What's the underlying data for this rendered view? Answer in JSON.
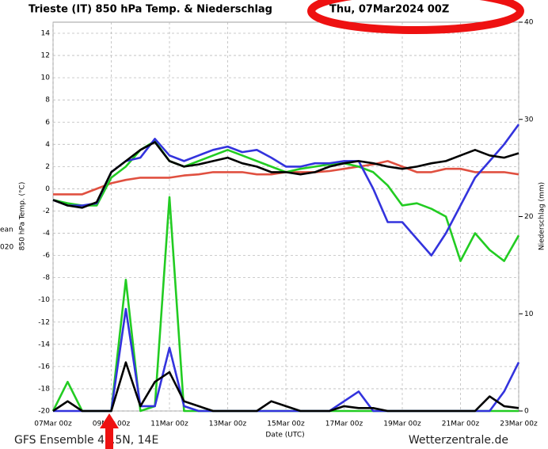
{
  "chart_data": {
    "type": "line",
    "title": "Trieste  (IT)  850 hPa Temp. & Niederschlag",
    "date": "Thu, 07Mar2024 00Z",
    "xlabel": "Date (UTC)",
    "ylabel": "850 hPa Temp. (°C)",
    "y2label": "Niederschlag (mm)",
    "side_labels": [
      "ean",
      "020"
    ],
    "footer_left": "GFS Ensemble 45.5N, 14E",
    "footer_right": "Wetterzentrale.de",
    "x": [
      0,
      0.5,
      1,
      1.5,
      2,
      2.5,
      3,
      3.5,
      4,
      4.5,
      5,
      5.5,
      6,
      6.5,
      7,
      7.5,
      8,
      8.5,
      9,
      9.5,
      10,
      10.5,
      11,
      11.5,
      12,
      12.5,
      13,
      13.5,
      14,
      14.5,
      15,
      15.5,
      16
    ],
    "xlim": [
      0,
      16
    ],
    "xticks": [
      {
        "value": 0,
        "label": "07Mar 00z"
      },
      {
        "value": 2,
        "label": "09Mar 00z"
      },
      {
        "value": 4,
        "label": "11Mar 00z"
      },
      {
        "value": 6,
        "label": "13Mar 00z"
      },
      {
        "value": 8,
        "label": "15Mar 00z"
      },
      {
        "value": 10,
        "label": "17Mar 00z"
      },
      {
        "value": 12,
        "label": "19Mar 00z"
      },
      {
        "value": 14,
        "label": "21Mar 00z"
      },
      {
        "value": 16,
        "label": "23Mar 00z"
      }
    ],
    "ylim": [
      -20,
      15
    ],
    "yticks": [
      -20,
      -18,
      -16,
      -14,
      -12,
      -10,
      -8,
      -6,
      -4,
      -2,
      0,
      2,
      4,
      6,
      8,
      10,
      12,
      14
    ],
    "y2lim": [
      0,
      40
    ],
    "y2ticks": [
      0,
      10,
      20,
      30,
      40
    ],
    "grid": true,
    "series": [
      {
        "color": "#e05040",
        "values": [
          -0.5,
          -0.5,
          -0.5,
          0,
          0.5,
          0.8,
          1,
          1,
          1,
          1.2,
          1.3,
          1.5,
          1.5,
          1.5,
          1.3,
          1.3,
          1.5,
          1.5,
          1.5,
          1.6,
          1.8,
          2,
          2.2,
          2.5,
          2,
          1.5,
          1.5,
          1.8,
          1.8,
          1.5,
          1.5,
          1.5,
          1.3
        ]
      },
      {
        "color": "#22cc22",
        "values": [
          -1,
          -1.3,
          -1.5,
          -1.5,
          1,
          2,
          3.5,
          4.3,
          2.5,
          2,
          2.5,
          3,
          3.5,
          3,
          2.5,
          2,
          1.5,
          1.8,
          2,
          2.2,
          2.3,
          2,
          1.5,
          0.3,
          -1.5,
          -1.3,
          -1.8,
          -2.5,
          -6.5,
          -4,
          -5.5,
          -6.5,
          -4.2
        ]
      },
      {
        "color": "#3333dd",
        "values": [
          -1,
          -1.5,
          -1.5,
          -1.3,
          1.5,
          2.5,
          2.8,
          4.5,
          3,
          2.5,
          3,
          3.5,
          3.8,
          3.3,
          3.5,
          2.8,
          2,
          2,
          2.3,
          2.3,
          2.5,
          2.5,
          0,
          -3,
          -3,
          -4.5,
          -6,
          -4,
          -1.5,
          1,
          2.5,
          4,
          5.8
        ]
      },
      {
        "color": "#000000",
        "values": [
          -1,
          -1.5,
          -1.7,
          -1.2,
          1.5,
          2.5,
          3.5,
          4.2,
          2.5,
          2,
          2.2,
          2.5,
          2.8,
          2.3,
          2,
          1.5,
          1.5,
          1.3,
          1.5,
          2,
          2.3,
          2.5,
          2.3,
          2,
          1.8,
          2,
          2.3,
          2.5,
          3,
          3.5,
          3,
          2.8,
          3.2
        ]
      },
      {
        "color": "#22cc22",
        "axis": "y2",
        "values": [
          0,
          3,
          0,
          0,
          0,
          13.5,
          0,
          0.5,
          22,
          0,
          0,
          0,
          0,
          0,
          0,
          0,
          0,
          0,
          0,
          0,
          0,
          0,
          0,
          0,
          0,
          0,
          0,
          0,
          0,
          0,
          0,
          0,
          0
        ]
      },
      {
        "color": "#3333dd",
        "axis": "y2",
        "values": [
          0,
          0,
          0,
          0,
          0,
          10.5,
          0.5,
          0.5,
          6.5,
          0.5,
          0,
          0,
          0,
          0,
          0,
          0,
          0,
          0,
          0,
          0,
          1,
          2,
          0,
          0,
          0,
          0,
          0,
          0,
          0,
          0,
          0,
          2,
          5
        ]
      },
      {
        "color": "#000000",
        "axis": "y2",
        "values": [
          0,
          1,
          0,
          0,
          0,
          5,
          0.5,
          3,
          4,
          1,
          0.5,
          0,
          0,
          0,
          0,
          1,
          0.5,
          0,
          0,
          0,
          0.5,
          0.3,
          0.3,
          0,
          0,
          0,
          0,
          0,
          0,
          0,
          1.5,
          0.5,
          0.3
        ]
      }
    ]
  }
}
